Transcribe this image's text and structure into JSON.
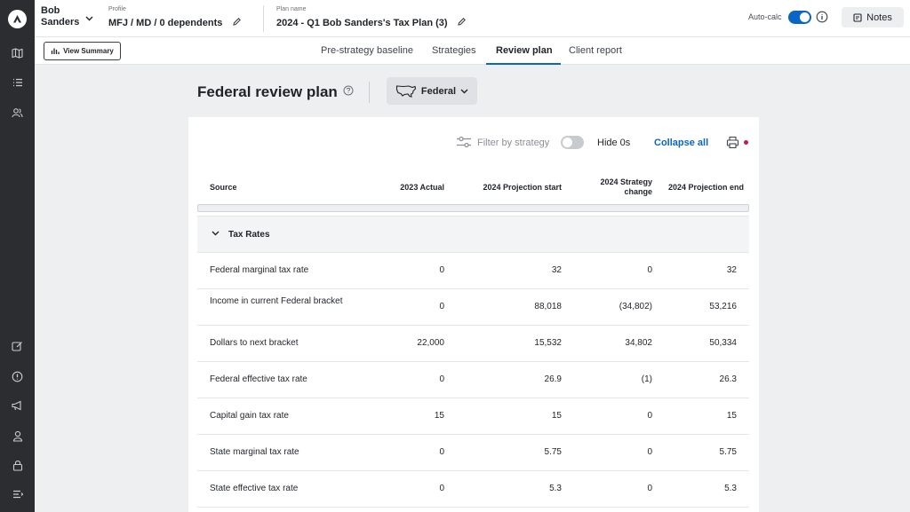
{
  "header": {
    "client_name": "Bob Sanders",
    "profile_label": "Profile",
    "profile_value": "MFJ / MD / 0 dependents",
    "plan_label": "Plan name",
    "plan_value": "2024 - Q1 Bob Sanders's Tax Plan (3)",
    "autocalc_label": "Auto-calc",
    "notes_label": "Notes"
  },
  "subbar": {
    "view_summary": "View Summary",
    "tabs": [
      {
        "label": "Pre-strategy baseline"
      },
      {
        "label": "Strategies"
      },
      {
        "label": "Review plan"
      },
      {
        "label": "Client report"
      }
    ]
  },
  "page": {
    "title": "Federal review plan",
    "jurisdiction": "Federal"
  },
  "toolbar": {
    "filter_label": "Filter by strategy",
    "hide_label": "Hide 0s",
    "collapse_label": "Collapse all"
  },
  "table": {
    "headers": {
      "source": "Source",
      "actual": "2023 Actual",
      "proj_start": "2024 Projection start",
      "strategy_line1": "2024 Strategy",
      "strategy_line2": "change",
      "proj_end": "2024 Projection end"
    },
    "section": "Tax Rates",
    "rows": [
      {
        "source": "Federal marginal tax rate",
        "actual": "0",
        "start": "32",
        "change": "0",
        "end": "32"
      },
      {
        "source": "Income in current Federal bracket",
        "actual": "0",
        "start": "88,018",
        "change": "(34,802)",
        "end": "53,216"
      },
      {
        "source": "Dollars to next bracket",
        "actual": "22,000",
        "start": "15,532",
        "change": "34,802",
        "end": "50,334"
      },
      {
        "source": "Federal effective tax rate",
        "actual": "0",
        "start": "26.9",
        "change": "(1)",
        "end": "26.3"
      },
      {
        "source": "Capital gain tax rate",
        "actual": "15",
        "start": "15",
        "change": "0",
        "end": "15"
      },
      {
        "source": "State marginal tax rate",
        "actual": "0",
        "start": "5.75",
        "change": "0",
        "end": "5.75"
      },
      {
        "source": "State effective tax rate",
        "actual": "0",
        "start": "5.3",
        "change": "0",
        "end": "5.3"
      }
    ]
  },
  "rail_icons": [
    "logo-icon",
    "map-icon",
    "list-icon",
    "clients-icon",
    "edit-note-icon",
    "alert-icon",
    "megaphone-icon",
    "user-icon",
    "lock-icon",
    "menu-icon"
  ],
  "colors": {
    "accent": "#0a66c2",
    "rail": "#2b2d31",
    "dot": "#c2185b"
  }
}
